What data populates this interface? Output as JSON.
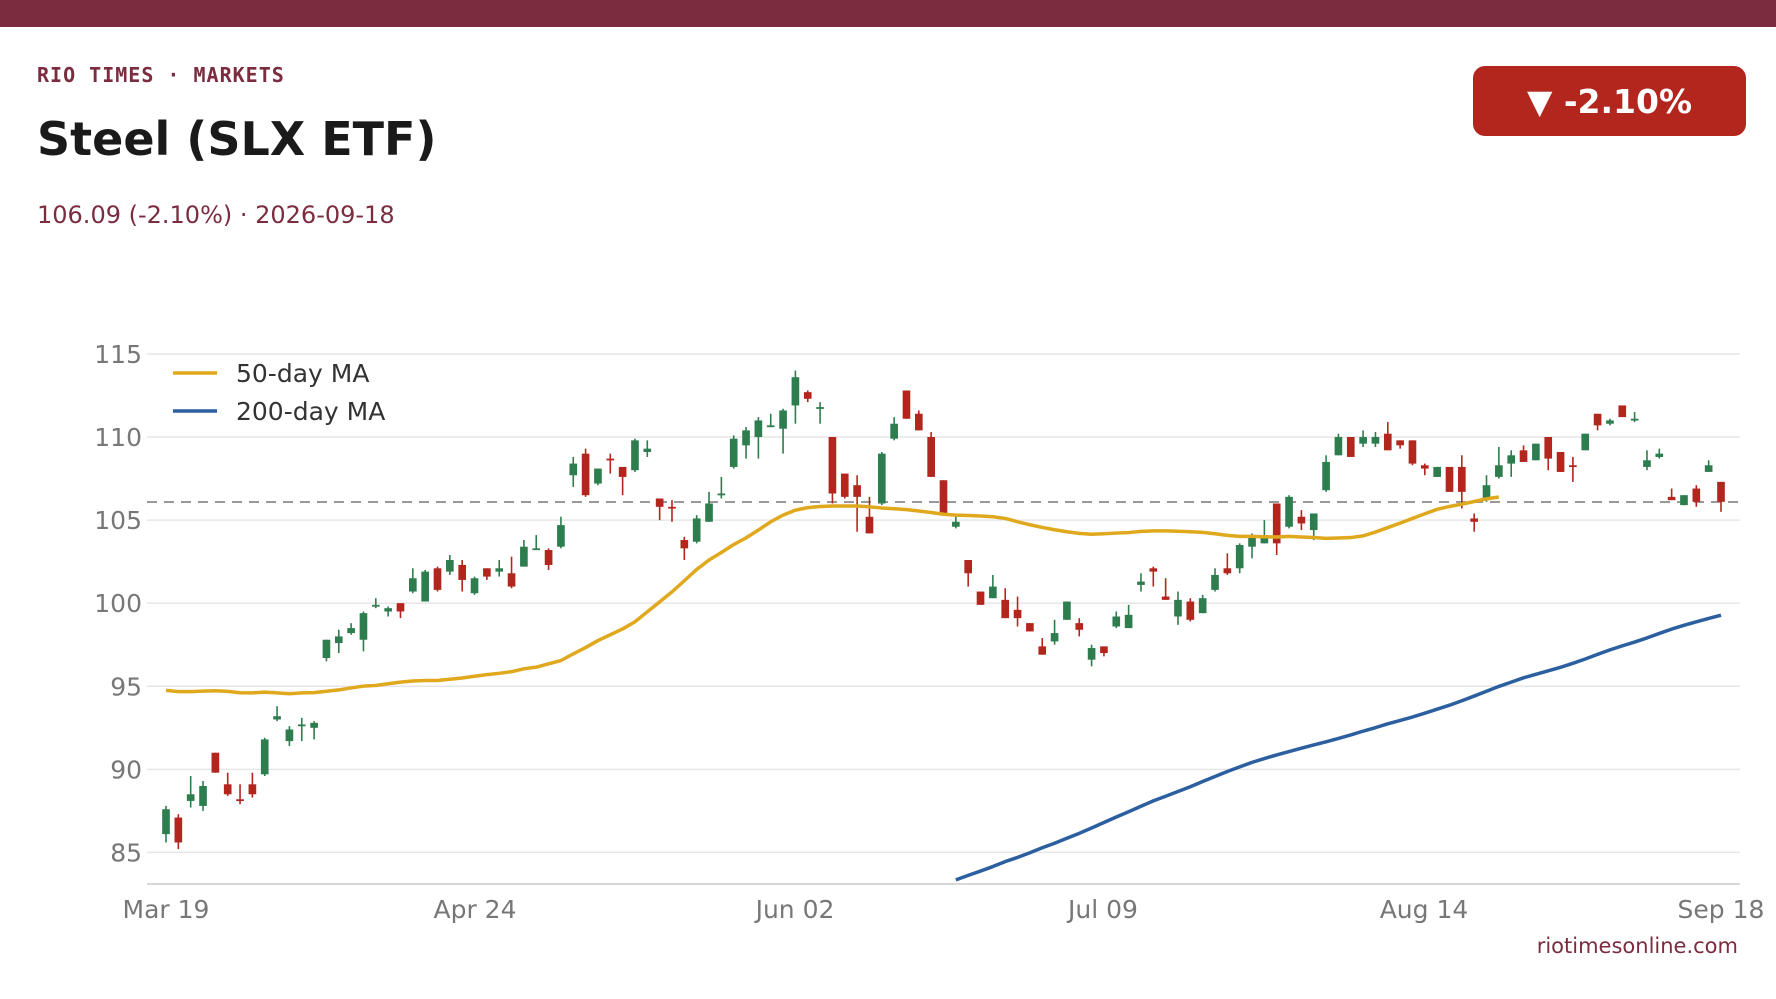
{
  "header": {
    "kicker": "RIO TIMES  ·  MARKETS",
    "title": "Steel (SLX ETF)",
    "subtitle": "106.09 (-2.10%)  ·  2026-09-18",
    "badge": "▼ -2.10%"
  },
  "footer": {
    "source": "riotimesonline.com"
  },
  "colors": {
    "brand": "#7b2c3f",
    "badge": "#b3261e",
    "up": "#2e7d4f",
    "down": "#b3261e",
    "ma50": "#e0a81c",
    "ma200": "#2b5fa0",
    "grid": "#e6e6e6",
    "tick": "#777777",
    "reference": "#999999"
  },
  "chart_data": {
    "type": "candlestick",
    "x_ticks": [
      "Mar 19",
      "Apr 24",
      "Jun 02",
      "Jul 09",
      "Aug 14",
      "Sep 18"
    ],
    "y_ticks": [
      85,
      90,
      95,
      100,
      105,
      110,
      115
    ],
    "ylim": [
      83.1,
      116.2
    ],
    "grid": true,
    "legend_position": "top-left",
    "reference_line": 106.09,
    "ohlc": [
      [
        86.1,
        87.8,
        85.6,
        87.6
      ],
      [
        87.1,
        87.3,
        85.2,
        85.6
      ],
      [
        88.1,
        89.6,
        87.7,
        88.5
      ],
      [
        87.8,
        89.3,
        87.5,
        89.0
      ],
      [
        91.0,
        91.0,
        89.8,
        89.8
      ],
      [
        89.1,
        89.8,
        88.4,
        88.5
      ],
      [
        88.2,
        89.1,
        87.9,
        88.1
      ],
      [
        89.1,
        89.8,
        88.3,
        88.5
      ],
      [
        89.7,
        91.9,
        89.6,
        91.8
      ],
      [
        93.0,
        93.8,
        92.9,
        93.2
      ],
      [
        91.7,
        92.6,
        91.4,
        92.4
      ],
      [
        92.7,
        93.1,
        91.7,
        92.7
      ],
      [
        92.5,
        92.9,
        91.8,
        92.8
      ],
      [
        96.7,
        97.8,
        96.5,
        97.8
      ],
      [
        97.6,
        98.4,
        97.0,
        98.0
      ],
      [
        98.2,
        98.8,
        98.1,
        98.5
      ],
      [
        97.8,
        99.5,
        97.1,
        99.4
      ],
      [
        99.8,
        100.3,
        99.7,
        99.9
      ],
      [
        99.5,
        99.8,
        99.2,
        99.7
      ],
      [
        100.0,
        100.0,
        99.1,
        99.5
      ],
      [
        100.7,
        102.1,
        100.6,
        101.5
      ],
      [
        100.1,
        102.0,
        100.1,
        101.9
      ],
      [
        102.1,
        102.2,
        100.7,
        100.8
      ],
      [
        101.9,
        102.9,
        101.7,
        102.6
      ],
      [
        102.3,
        102.6,
        100.7,
        101.4
      ],
      [
        100.6,
        101.6,
        100.5,
        101.5
      ],
      [
        102.1,
        102.1,
        101.4,
        101.6
      ],
      [
        101.9,
        102.6,
        101.6,
        102.1
      ],
      [
        101.8,
        102.8,
        100.9,
        101.0
      ],
      [
        102.2,
        103.8,
        102.2,
        103.4
      ],
      [
        103.3,
        104.1,
        103.2,
        103.3
      ],
      [
        103.2,
        103.3,
        102.0,
        102.3
      ],
      [
        103.4,
        105.2,
        103.3,
        104.7
      ],
      [
        107.7,
        108.8,
        107.0,
        108.4
      ],
      [
        109.0,
        109.3,
        106.4,
        106.5
      ],
      [
        107.2,
        108.1,
        107.1,
        108.1
      ],
      [
        108.7,
        109.0,
        107.8,
        108.6
      ],
      [
        108.2,
        108.2,
        106.5,
        107.6
      ],
      [
        108.0,
        109.9,
        107.9,
        109.8
      ],
      [
        109.1,
        109.8,
        108.8,
        109.3
      ],
      [
        106.3,
        106.3,
        105.0,
        105.8
      ],
      [
        105.8,
        106.2,
        104.9,
        105.7
      ],
      [
        103.8,
        104.0,
        102.6,
        103.3
      ],
      [
        103.7,
        105.3,
        103.6,
        105.1
      ],
      [
        104.9,
        106.7,
        104.9,
        106.0
      ],
      [
        106.5,
        107.6,
        106.3,
        106.6
      ],
      [
        108.2,
        110.1,
        108.1,
        109.9
      ],
      [
        109.5,
        110.6,
        108.7,
        110.4
      ],
      [
        110.0,
        111.2,
        108.7,
        111.0
      ],
      [
        110.6,
        111.4,
        110.6,
        110.7
      ],
      [
        110.5,
        111.7,
        109.0,
        111.6
      ],
      [
        111.9,
        114.0,
        110.8,
        113.6
      ],
      [
        112.7,
        112.8,
        112.1,
        112.3
      ],
      [
        111.8,
        112.1,
        110.8,
        111.8
      ],
      [
        110.0,
        110.0,
        106.0,
        106.6
      ],
      [
        107.8,
        107.8,
        106.3,
        106.4
      ],
      [
        107.1,
        107.7,
        104.3,
        106.4
      ],
      [
        105.2,
        106.4,
        104.2,
        104.2
      ],
      [
        106.0,
        109.1,
        105.9,
        109.0
      ],
      [
        109.9,
        111.2,
        109.8,
        110.8
      ],
      [
        112.8,
        112.8,
        111.1,
        111.1
      ],
      [
        111.4,
        111.6,
        110.4,
        110.4
      ],
      [
        110.0,
        110.3,
        107.6,
        107.6
      ],
      [
        107.4,
        107.4,
        105.3,
        105.3
      ],
      [
        104.6,
        105.3,
        104.5,
        104.9
      ],
      [
        102.6,
        102.6,
        101.0,
        101.8
      ],
      [
        100.7,
        100.7,
        99.9,
        99.9
      ],
      [
        100.3,
        101.7,
        100.3,
        101.0
      ],
      [
        100.2,
        100.9,
        99.1,
        99.1
      ],
      [
        99.6,
        100.4,
        98.6,
        99.1
      ],
      [
        98.8,
        98.8,
        98.3,
        98.3
      ],
      [
        97.4,
        97.9,
        96.9,
        96.9
      ],
      [
        97.7,
        99.0,
        97.5,
        98.2
      ],
      [
        99.0,
        100.1,
        99.0,
        100.1
      ],
      [
        98.8,
        99.1,
        98.0,
        98.4
      ],
      [
        96.6,
        97.5,
        96.2,
        97.3
      ],
      [
        97.4,
        97.4,
        96.8,
        97.0
      ],
      [
        98.6,
        99.5,
        98.5,
        99.2
      ],
      [
        98.5,
        99.9,
        98.5,
        99.3
      ],
      [
        101.1,
        101.8,
        100.7,
        101.3
      ],
      [
        102.1,
        102.2,
        101.0,
        101.9
      ],
      [
        100.4,
        101.5,
        100.2,
        100.2
      ],
      [
        99.2,
        100.7,
        98.7,
        100.2
      ],
      [
        100.1,
        100.3,
        98.9,
        99.0
      ],
      [
        99.4,
        100.5,
        99.4,
        100.3
      ],
      [
        100.8,
        102.1,
        100.7,
        101.7
      ],
      [
        102.1,
        103.0,
        101.7,
        101.8
      ],
      [
        102.1,
        103.6,
        101.8,
        103.5
      ],
      [
        103.4,
        104.2,
        102.7,
        104.1
      ],
      [
        103.6,
        105.0,
        103.6,
        104.1
      ],
      [
        106.0,
        106.0,
        102.9,
        103.6
      ],
      [
        104.6,
        106.5,
        104.5,
        106.4
      ],
      [
        105.2,
        105.6,
        104.4,
        104.8
      ],
      [
        104.4,
        105.4,
        103.8,
        105.4
      ],
      [
        106.8,
        108.9,
        106.7,
        108.5
      ],
      [
        108.9,
        110.2,
        108.9,
        110.0
      ],
      [
        110.0,
        110.0,
        108.8,
        108.8
      ],
      [
        109.6,
        110.4,
        109.4,
        110.0
      ],
      [
        109.6,
        110.3,
        109.4,
        110.0
      ],
      [
        110.2,
        110.9,
        109.2,
        109.2
      ],
      [
        109.8,
        109.8,
        109.3,
        109.5
      ],
      [
        109.8,
        109.8,
        108.3,
        108.4
      ],
      [
        108.3,
        108.4,
        107.7,
        108.1
      ],
      [
        107.6,
        108.2,
        107.6,
        108.2
      ],
      [
        108.2,
        108.2,
        106.7,
        106.7
      ],
      [
        108.2,
        108.9,
        105.7,
        106.7
      ],
      [
        105.1,
        105.4,
        104.3,
        104.9
      ],
      [
        106.3,
        107.7,
        106.1,
        107.1
      ],
      [
        107.6,
        109.4,
        107.5,
        108.3
      ],
      [
        108.4,
        109.2,
        107.6,
        108.9
      ],
      [
        109.2,
        109.5,
        108.5,
        108.5
      ],
      [
        108.6,
        109.6,
        108.6,
        109.6
      ],
      [
        110.0,
        110.0,
        108.0,
        108.7
      ],
      [
        109.1,
        109.1,
        107.9,
        107.9
      ],
      [
        108.3,
        108.8,
        107.3,
        108.2
      ],
      [
        109.2,
        110.2,
        109.2,
        110.2
      ],
      [
        111.4,
        111.4,
        110.4,
        110.7
      ],
      [
        110.8,
        111.1,
        110.7,
        111.0
      ],
      [
        111.9,
        111.9,
        111.2,
        111.2
      ],
      [
        111.0,
        111.5,
        110.9,
        111.1
      ],
      [
        108.2,
        109.2,
        108.0,
        108.6
      ],
      [
        108.8,
        109.3,
        108.7,
        109.0
      ],
      [
        106.4,
        106.9,
        106.2,
        106.2
      ],
      [
        105.9,
        106.5,
        105.9,
        106.5
      ],
      [
        106.9,
        107.1,
        105.8,
        106.1
      ],
      [
        107.9,
        108.6,
        107.9,
        108.3
      ],
      [
        107.3,
        107.3,
        105.5,
        106.1
      ]
    ],
    "ma50": [
      94.75,
      94.68,
      94.68,
      94.71,
      94.73,
      94.69,
      94.61,
      94.6,
      94.65,
      94.6,
      94.55,
      94.6,
      94.62,
      94.7,
      94.78,
      94.9,
      95.01,
      95.05,
      95.15,
      95.25,
      95.32,
      95.35,
      95.35,
      95.42,
      95.5,
      95.6,
      95.7,
      95.78,
      95.88,
      96.05,
      96.15,
      96.35,
      96.55,
      96.95,
      97.33,
      97.75,
      98.1,
      98.45,
      98.88,
      99.48,
      100.08,
      100.68,
      101.35,
      102.03,
      102.6,
      103.05,
      103.53,
      103.93,
      104.4,
      104.9,
      105.3,
      105.6,
      105.75,
      105.82,
      105.85,
      105.85,
      105.85,
      105.8,
      105.73,
      105.68,
      105.63,
      105.55,
      105.46,
      105.35,
      105.3,
      105.28,
      105.25,
      105.2,
      105.1,
      104.9,
      104.72,
      104.56,
      104.42,
      104.3,
      104.2,
      104.15,
      104.18,
      104.22,
      104.25,
      104.32,
      104.35,
      104.35,
      104.33,
      104.3,
      104.26,
      104.18,
      104.08,
      104.02,
      104.02,
      104.0,
      103.98,
      104.02,
      103.98,
      103.95,
      103.9,
      103.92,
      103.95,
      104.05,
      104.28,
      104.55,
      104.82,
      105.1,
      105.38,
      105.65,
      105.82,
      105.96,
      106.12,
      106.28,
      106.39
    ],
    "ma200": [
      83.35,
      83.62,
      83.88,
      84.15,
      84.45,
      84.7,
      84.98,
      85.28,
      85.55,
      85.85,
      86.15,
      86.47,
      86.8,
      87.13,
      87.45,
      87.78,
      88.1,
      88.38,
      88.67,
      88.95,
      89.27,
      89.57,
      89.87,
      90.15,
      90.42,
      90.65,
      90.87,
      91.07,
      91.27,
      91.47,
      91.66,
      91.86,
      92.07,
      92.3,
      92.51,
      92.74,
      92.94,
      93.15,
      93.38,
      93.62,
      93.86,
      94.13,
      94.41,
      94.7,
      94.99,
      95.25,
      95.51,
      95.72,
      95.93,
      96.14,
      96.38,
      96.64,
      96.92,
      97.19,
      97.43,
      97.66,
      97.91,
      98.18,
      98.44,
      98.67,
      98.88,
      99.08,
      99.28
    ]
  }
}
